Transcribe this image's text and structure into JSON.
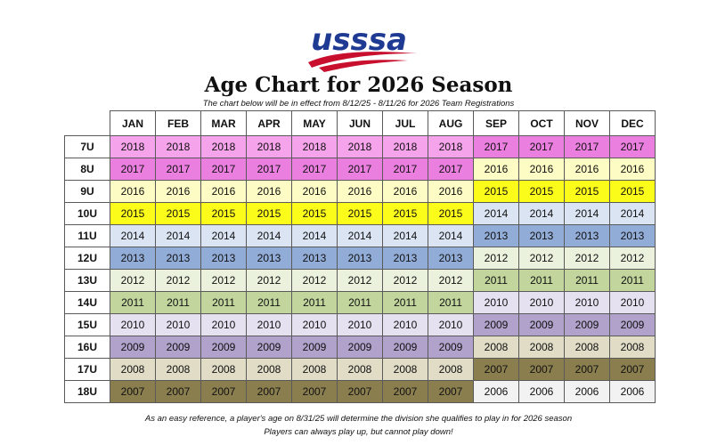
{
  "logo": {
    "text": "usssa"
  },
  "title": "Age Chart for 2026 Season",
  "subtitle": "The chart below will be in effect from 8/12/25 - 8/11/26 for 2026 Team Registrations",
  "months": [
    "JAN",
    "FEB",
    "MAR",
    "APR",
    "MAY",
    "JUN",
    "JUL",
    "AUG",
    "SEP",
    "OCT",
    "NOV",
    "DEC"
  ],
  "year_colors": {
    "2018": "#f5a3ea",
    "2017": "#eb7fe0",
    "2016": "#fcfcc4",
    "2015": "#fcfc1a",
    "2014": "#dae4f3",
    "2013": "#92acd8",
    "2012": "#eaf1dd",
    "2011": "#c1d59d",
    "2010": "#e6e1f0",
    "2009": "#b1a2cb",
    "2008": "#e0dcc6",
    "2007": "#8a7e4f",
    "2006": "#f2f2f2"
  },
  "rows": [
    {
      "division": "7U",
      "years": [
        "2018",
        "2018",
        "2018",
        "2018",
        "2018",
        "2018",
        "2018",
        "2018",
        "2017",
        "2017",
        "2017",
        "2017"
      ]
    },
    {
      "division": "8U",
      "years": [
        "2017",
        "2017",
        "2017",
        "2017",
        "2017",
        "2017",
        "2017",
        "2017",
        "2016",
        "2016",
        "2016",
        "2016"
      ]
    },
    {
      "division": "9U",
      "years": [
        "2016",
        "2016",
        "2016",
        "2016",
        "2016",
        "2016",
        "2016",
        "2016",
        "2015",
        "2015",
        "2015",
        "2015"
      ]
    },
    {
      "division": "10U",
      "years": [
        "2015",
        "2015",
        "2015",
        "2015",
        "2015",
        "2015",
        "2015",
        "2015",
        "2014",
        "2014",
        "2014",
        "2014"
      ]
    },
    {
      "division": "11U",
      "years": [
        "2014",
        "2014",
        "2014",
        "2014",
        "2014",
        "2014",
        "2014",
        "2014",
        "2013",
        "2013",
        "2013",
        "2013"
      ]
    },
    {
      "division": "12U",
      "years": [
        "2013",
        "2013",
        "2013",
        "2013",
        "2013",
        "2013",
        "2013",
        "2013",
        "2012",
        "2012",
        "2012",
        "2012"
      ]
    },
    {
      "division": "13U",
      "years": [
        "2012",
        "2012",
        "2012",
        "2012",
        "2012",
        "2012",
        "2012",
        "2012",
        "2011",
        "2011",
        "2011",
        "2011"
      ]
    },
    {
      "division": "14U",
      "years": [
        "2011",
        "2011",
        "2011",
        "2011",
        "2011",
        "2011",
        "2011",
        "2011",
        "2010",
        "2010",
        "2010",
        "2010"
      ]
    },
    {
      "division": "15U",
      "years": [
        "2010",
        "2010",
        "2010",
        "2010",
        "2010",
        "2010",
        "2010",
        "2010",
        "2009",
        "2009",
        "2009",
        "2009"
      ]
    },
    {
      "division": "16U",
      "years": [
        "2009",
        "2009",
        "2009",
        "2009",
        "2009",
        "2009",
        "2009",
        "2009",
        "2008",
        "2008",
        "2008",
        "2008"
      ]
    },
    {
      "division": "17U",
      "years": [
        "2008",
        "2008",
        "2008",
        "2008",
        "2008",
        "2008",
        "2008",
        "2008",
        "2007",
        "2007",
        "2007",
        "2007"
      ]
    },
    {
      "division": "18U",
      "years": [
        "2007",
        "2007",
        "2007",
        "2007",
        "2007",
        "2007",
        "2007",
        "2007",
        "2006",
        "2006",
        "2006",
        "2006"
      ]
    }
  ],
  "footer": {
    "line1": "As an easy reference, a player's age on 8/31/25 will determine the division she qualifies to play in for 2026 season",
    "line2": "Players can always play up, but cannot play down!"
  }
}
